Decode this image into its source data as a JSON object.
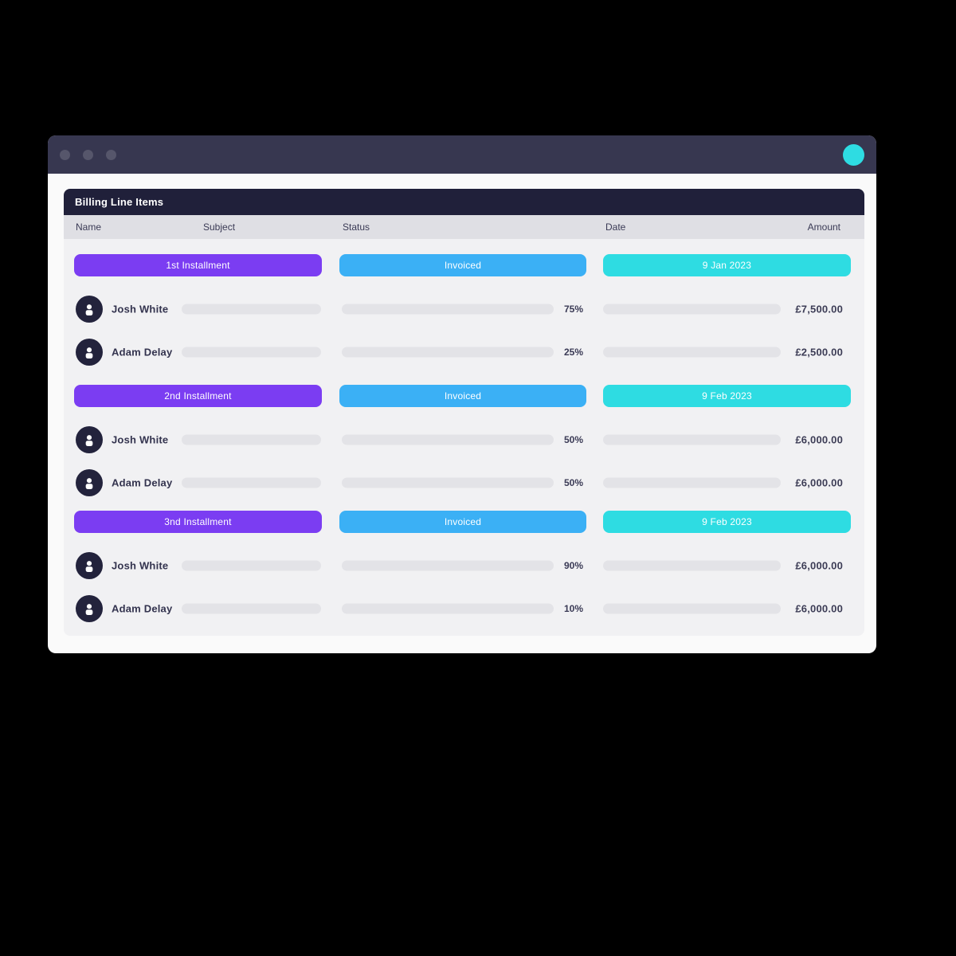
{
  "window": {
    "titlebar": {
      "traffic_dot_count": 3,
      "accent_circle_color": "#2edce2"
    },
    "table": {
      "title": "Billing Line Items",
      "columns": [
        "Name",
        "Subject",
        "Status",
        "Date",
        "Amount"
      ],
      "sections": [
        {
          "installment_label": "1st Installment",
          "status_label": "Invoiced",
          "date_label": "9 Jan 2023",
          "rows": [
            {
              "name": "Josh White",
              "progress_pct": 75,
              "progress_label": "75%",
              "amount": "£7,500.00",
              "bar_color": "#a33ef4"
            },
            {
              "name": "Adam Delay",
              "progress_pct": 25,
              "progress_label": "25%",
              "amount": "£2,500.00",
              "bar_color": "#6c42ee"
            }
          ]
        },
        {
          "installment_label": "2nd Installment",
          "status_label": "Invoiced",
          "date_label": "9 Feb 2023",
          "rows": [
            {
              "name": "Josh White",
              "progress_pct": 50,
              "progress_label": "50%",
              "amount": "£6,000.00",
              "bar_color": "#a33ef4"
            },
            {
              "name": "Adam Delay",
              "progress_pct": 50,
              "progress_label": "50%",
              "amount": "£6,000.00",
              "bar_color": "#6c42ee"
            }
          ]
        },
        {
          "installment_label": "3nd Installment",
          "status_label": "Invoiced",
          "date_label": "9 Feb 2023",
          "rows": [
            {
              "name": "Josh White",
              "progress_pct": 90,
              "progress_label": "90%",
              "amount": "£6,000.00",
              "bar_color": "#a33ef4"
            },
            {
              "name": "Adam Delay",
              "progress_pct": 10,
              "progress_label": "10%",
              "amount": "£6,000.00",
              "bar_color": "#6c42ee"
            }
          ]
        }
      ]
    }
  },
  "icons": {
    "avatar": "person-icon",
    "titlebar_dots": "window-control-dot"
  },
  "colors": {
    "page_background": "#000000",
    "window_background": "#fafafa",
    "titlebar": "#373750",
    "titlebar_dot": "#56566b",
    "card_background": "#f1f1f3",
    "card_header": "#20203a",
    "column_header_row": "#dfdfe4",
    "installment_pill": "#7b3df2",
    "status_pill": "#3bb0f5",
    "date_pill": "#2edce2",
    "placeholder_bar": "#e3e3e7",
    "progress_fill_josh": "#a33ef4",
    "progress_fill_adam": "#6c42ee",
    "avatar_background": "#23233c",
    "dark_text": "#33334e"
  }
}
